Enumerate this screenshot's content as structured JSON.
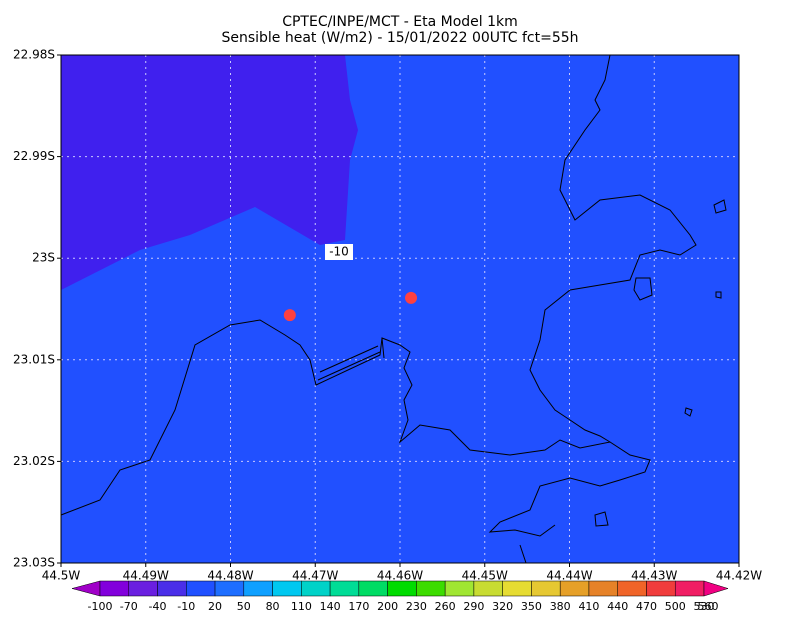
{
  "chart_data": {
    "type": "map",
    "title": "CPTEC/INPE/MCT -  Eta Model 1km",
    "subtitle": "Sensible heat (W/m2) - 15/01/2022 00UTC fct=55h",
    "xlim": [
      44.5,
      44.42
    ],
    "xticks": [
      {
        "value": 44.5,
        "label": "44.5W"
      },
      {
        "value": 44.49,
        "label": "44.49W"
      },
      {
        "value": 44.48,
        "label": "44.48W"
      },
      {
        "value": 44.47,
        "label": "44.47W"
      },
      {
        "value": 44.46,
        "label": "44.46W"
      },
      {
        "value": 44.45,
        "label": "44.45W"
      },
      {
        "value": 44.44,
        "label": "44.44W"
      },
      {
        "value": 44.43,
        "label": "44.43W"
      },
      {
        "value": 44.42,
        "label": "44.42W"
      }
    ],
    "ylim": [
      22.98,
      23.03
    ],
    "yticks": [
      {
        "value": 22.98,
        "label": "22.98S"
      },
      {
        "value": 22.99,
        "label": "22.99S"
      },
      {
        "value": 23.0,
        "label": "23S"
      },
      {
        "value": 23.01,
        "label": "23.01S"
      },
      {
        "value": 23.02,
        "label": "23.02S"
      },
      {
        "value": 23.03,
        "label": "23.03S"
      }
    ],
    "grid": true,
    "contour_labels": [
      -10
    ],
    "points": {
      "color": "#ff4040",
      "lon": [
        44.473,
        44.4587
      ],
      "lat": [
        23.0056,
        23.0039
      ]
    },
    "colorbar": {
      "levels": [
        -100,
        -70,
        -40,
        -10,
        20,
        50,
        80,
        110,
        140,
        170,
        200,
        230,
        260,
        290,
        320,
        350,
        380,
        410,
        440,
        470,
        500,
        530,
        560
      ],
      "colors": [
        "#a000c8",
        "#8200dc",
        "#6a1fe0",
        "#4a2ee8",
        "#2050ff",
        "#1e6eff",
        "#0fa0ff",
        "#00c8f0",
        "#00d2c8",
        "#00dc96",
        "#00dc64",
        "#00dc00",
        "#3cdc00",
        "#a0e632",
        "#c8dc32",
        "#e6dc32",
        "#e6c832",
        "#e6a028",
        "#e68228",
        "#f06428",
        "#f03c3c",
        "#f01e64",
        "#f00082"
      ]
    }
  }
}
